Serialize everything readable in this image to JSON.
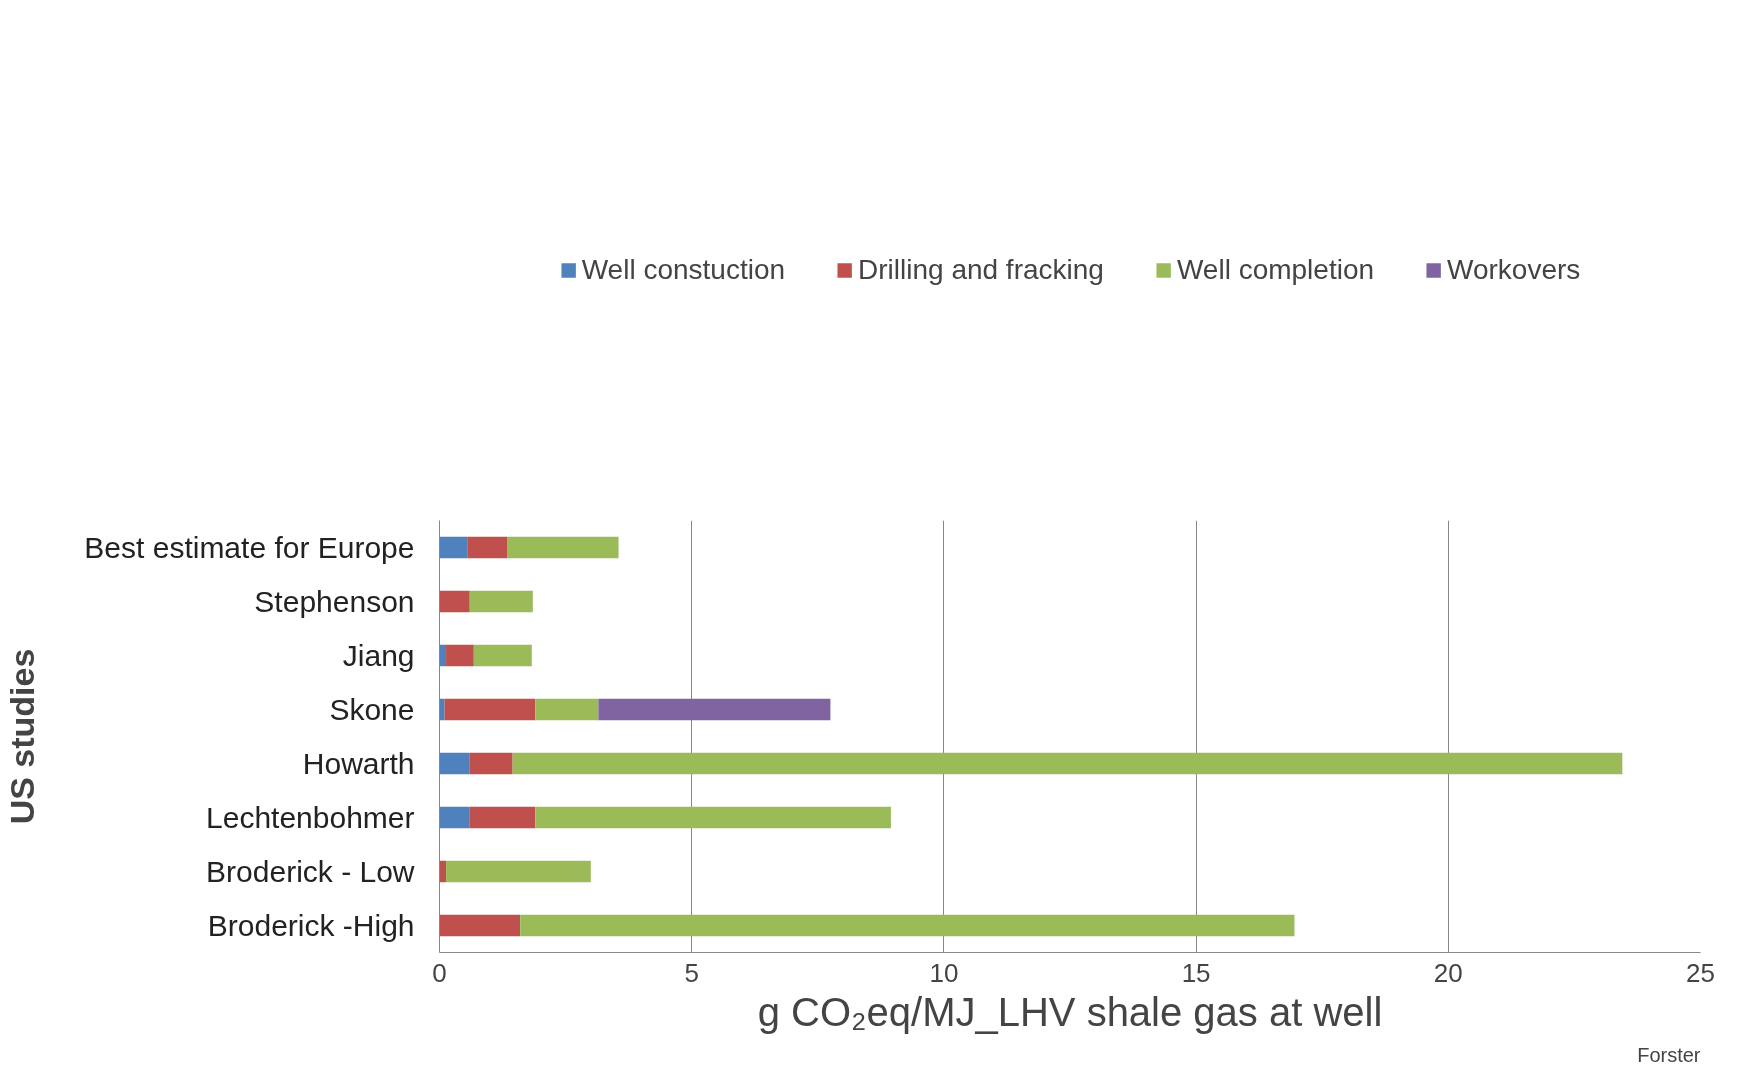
{
  "chart_data": {
    "type": "bar",
    "orientation": "horizontal",
    "stacked": true,
    "categories": [
      "Best estimate for Europe",
      "Stephenson",
      "Jiang",
      "Skone",
      "Howarth",
      "Lechtenbohmer",
      "Broderick - Low",
      "Broderick -High"
    ],
    "series": [
      {
        "name": "Well constuction",
        "color": "#4f81bd",
        "values": [
          0.55,
          0,
          0.13,
          0.1,
          0.6,
          0.6,
          0,
          0
        ]
      },
      {
        "name": "Drilling and fracking",
        "color": "#c0504d",
        "values": [
          0.8,
          0.6,
          0.55,
          1.8,
          0.85,
          1.3,
          0.13,
          1.6
        ]
      },
      {
        "name": "Well completion",
        "color": "#9bbb59",
        "values": [
          2.2,
          1.25,
          1.15,
          1.25,
          22.0,
          7.05,
          2.87,
          15.35
        ]
      },
      {
        "name": "Workovers",
        "color": "#8064a2",
        "values": [
          0,
          0,
          0,
          4.6,
          0,
          0,
          0,
          0
        ]
      }
    ],
    "xlim": [
      0,
      25
    ],
    "xticks": [
      0,
      5,
      10,
      15,
      20,
      25
    ],
    "xlabel": "g CO₂eq/MJ_LHV shale gas at well",
    "ylabel": "US studies",
    "annotations": [
      "Forster"
    ],
    "grid": "x",
    "legend": "top"
  }
}
